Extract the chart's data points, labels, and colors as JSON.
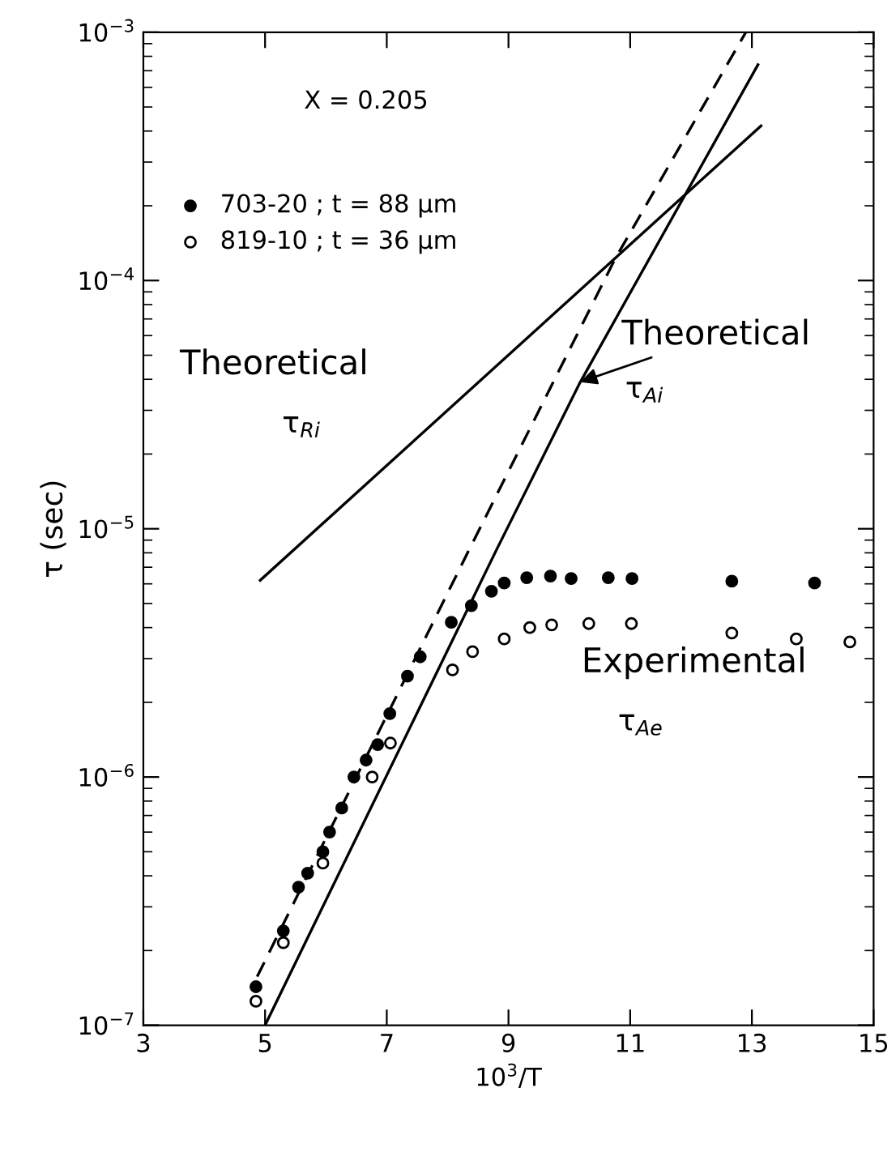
{
  "chart_data": {
    "type": "scatter",
    "xlabel": "10$^{3}$/T",
    "ylabel": "τ (sec)",
    "log": "y",
    "xlim": [
      3,
      15
    ],
    "xticks": [
      3,
      5,
      7,
      9,
      11,
      13,
      15
    ],
    "ylim": [
      1e-07,
      0.001
    ],
    "yticks": [
      {
        "value": 1e-07,
        "label": "10$^{−7}$"
      },
      {
        "value": 1e-06,
        "label": "10$^{−6}$"
      },
      {
        "value": 1e-05,
        "label": "10$^{−5}$"
      },
      {
        "value": 0.0001,
        "label": "10$^{−4}$"
      },
      {
        "value": 0.001,
        "label": "10$^{−3}$"
      }
    ],
    "grid": false,
    "legend": "top left",
    "series": [
      {
        "name": "703-20 ; t = 88 μm",
        "marker": "circle",
        "color": "#000000",
        "x": [
          4.85,
          5.3,
          5.55,
          5.7,
          5.95,
          6.06,
          6.26,
          6.46,
          6.66,
          6.85,
          7.05,
          7.34,
          7.55,
          8.06,
          8.39,
          8.72,
          8.93,
          9.3,
          9.69,
          10.03,
          10.64,
          11.03,
          12.67,
          14.03
        ],
        "values": [
          1.43e-07,
          2.4e-07,
          3.6e-07,
          4.1e-07,
          5e-07,
          6e-07,
          7.5e-07,
          1e-06,
          1.17e-06,
          1.35e-06,
          1.8e-06,
          2.55e-06,
          3.05e-06,
          4.2e-06,
          4.9e-06,
          5.6e-06,
          6.05e-06,
          6.35e-06,
          6.45e-06,
          6.3e-06,
          6.35e-06,
          6.3e-06,
          6.15e-06,
          6.05e-06
        ]
      },
      {
        "name": "819-10 ; t = 36 μm",
        "marker": "circle",
        "color": "#000000",
        "x": [
          4.85,
          5.3,
          5.95,
          6.76,
          7.06,
          8.08,
          8.41,
          8.93,
          9.35,
          9.71,
          10.32,
          11.02,
          12.67,
          13.73,
          14.61
        ],
        "values": [
          1.25e-07,
          2.15e-07,
          4.5e-07,
          1e-06,
          1.37e-06,
          2.7e-06,
          3.2e-06,
          3.6e-06,
          4e-06,
          4.1e-06,
          4.15e-06,
          4.15e-06,
          3.8e-06,
          3.6e-06,
          3.5e-06
        ]
      },
      {
        "type": "line",
        "color": "#000000",
        "line_style": "solid",
        "marker": "none",
        "x": [
          4.92,
          13.15
        ],
        "values": [
          6.2e-06,
          0.00042
        ]
      },
      {
        "type": "line",
        "color": "#000000",
        "line_style": "solid",
        "marker": "none",
        "x": [
          5.0,
          8.8,
          10.18,
          13.1
        ],
        "values": [
          1e-07,
          8.2e-06,
          3.9e-05,
          0.00074
        ]
      },
      {
        "type": "line",
        "color": "#000000",
        "line_style": "dashed",
        "marker": "none",
        "x": [
          4.87,
          8.35,
          10.75,
          12.9
        ],
        "values": [
          1.57e-07,
          8.2e-06,
          0.000122,
          0.001
        ]
      }
    ],
    "annotations": [
      "X = 0.205",
      {
        "text": "Theoretical",
        "x": 10.18,
        "y": 3.9e-05
      },
      "τ$_{Ai}$",
      "Theoretical",
      "τ$_{Ri}$",
      "Experimental",
      "τ$_{Ae}$"
    ]
  }
}
